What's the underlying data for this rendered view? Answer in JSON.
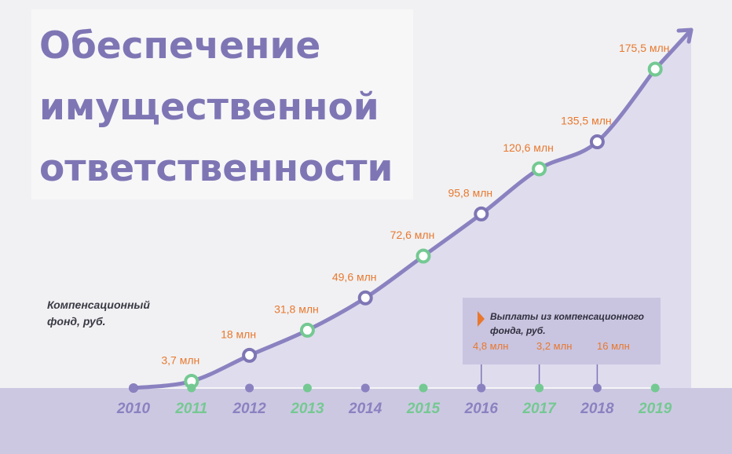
{
  "title": "Обеспечение\nимущественной\nответственности",
  "fund_label": "Компенсационный фонд, руб.",
  "payouts": {
    "title": "Выплаты из компенсационного фонда, руб.",
    "values": [
      {
        "year": "2016",
        "label": "4,8 млн"
      },
      {
        "year": "2017",
        "label": "3,2 млн"
      },
      {
        "year": "2018",
        "label": "16 млн"
      }
    ]
  },
  "colors": {
    "line": "#8a82c0",
    "area": "#d8d4ec",
    "band": "#cdc8e2",
    "value_label": "#e8782e",
    "year_purple": "#8a82c0",
    "year_green": "#74c992",
    "marker_green": "#74c992",
    "marker_purple": "#7e76b4"
  },
  "chart_data": {
    "type": "area",
    "title": "Обеспечение имущественной ответственности",
    "ylabel": "Компенсационный фонд, руб.",
    "x": [
      "2010",
      "2011",
      "2012",
      "2013",
      "2014",
      "2015",
      "2016",
      "2017",
      "2018",
      "2019"
    ],
    "series": [
      {
        "name": "Компенсационный фонд, руб.",
        "values": [
          0,
          3.7,
          18,
          31.8,
          49.6,
          72.6,
          95.8,
          120.6,
          135.5,
          175.5
        ],
        "labels": [
          "",
          "3,7 млн",
          "18 млн",
          "31,8 млн",
          "49,6 млн",
          "72,6 млн",
          "95,8 млн",
          "120,6 млн",
          "135,5 млн",
          "175,5 млн"
        ]
      }
    ],
    "marker_colors": [
      "none",
      "green",
      "purple",
      "green",
      "purple",
      "green",
      "purple",
      "green",
      "purple",
      "green"
    ],
    "year_colors": [
      "purple",
      "green",
      "purple",
      "green",
      "purple",
      "green",
      "purple",
      "green",
      "purple",
      "green"
    ],
    "ylim": [
      0,
      180
    ],
    "grid": false,
    "legend": "none"
  }
}
